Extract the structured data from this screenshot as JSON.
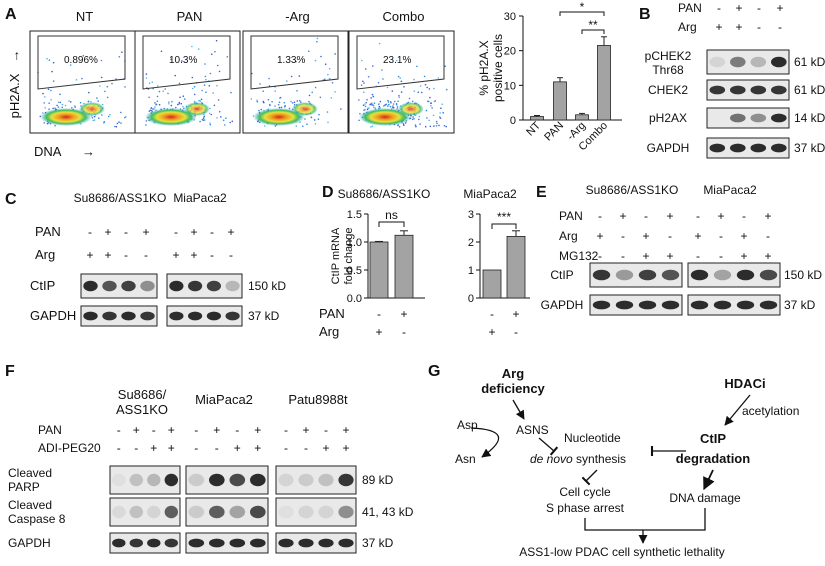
{
  "panels": {
    "A": {
      "letter": "A",
      "flow": {
        "titles": [
          "NT",
          "PAN",
          "-Arg",
          "Combo"
        ],
        "percents": [
          "0.896%",
          "10.3%",
          "1.33%",
          "23.1%"
        ],
        "y_label": "pH2A.X",
        "x_label": "DNA",
        "y_arrow": "→",
        "x_arrow": "→"
      },
      "bar": {
        "type": "bar",
        "ylabel_line1": "% pH2A.X",
        "ylabel_line2": "positive cells",
        "categories": [
          "NT",
          "PAN",
          "-Arg",
          "Combo"
        ],
        "values": [
          1,
          11,
          1.5,
          21.5
        ],
        "errors": [
          0.3,
          1.2,
          0.4,
          2.5
        ],
        "ylim": [
          0,
          30
        ],
        "yticks": [
          "0",
          "10",
          "20",
          "30"
        ],
        "significance": [
          "*",
          "**"
        ]
      }
    },
    "B": {
      "letter": "B",
      "rows": [
        {
          "name": "PAN",
          "signs": [
            "-",
            "+",
            "-",
            "+"
          ]
        },
        {
          "name": "Arg",
          "signs": [
            "+",
            "+",
            "-",
            "-"
          ]
        }
      ],
      "blots": [
        {
          "name_line1": "pCHEK2",
          "name_line2": "Thr68",
          "kd": "61 kD"
        },
        {
          "name_line1": "CHEK2",
          "name_line2": "",
          "kd": "61 kD"
        },
        {
          "name_line1": "pH2AX",
          "name_line2": "",
          "kd": "14 kD"
        },
        {
          "name_line1": "GAPDH",
          "name_line2": "",
          "kd": "37 kD"
        }
      ]
    },
    "C": {
      "letter": "C",
      "cells": [
        "Su8686/ASS1KO",
        "MiaPaca2"
      ],
      "rows": [
        {
          "name": "PAN",
          "signs": [
            "-",
            "+",
            "-",
            "+",
            "-",
            "+",
            "-",
            "+"
          ]
        },
        {
          "name": "Arg",
          "signs": [
            "+",
            "+",
            "-",
            "-",
            "+",
            "+",
            "-",
            "-"
          ]
        }
      ],
      "blots": [
        {
          "name": "CtIP",
          "kd": "150 kD"
        },
        {
          "name": "GAPDH",
          "kd": "37 kD"
        }
      ]
    },
    "D": {
      "letter": "D",
      "ylabel_line1": "CtIP mRNA",
      "ylabel_line2": "fold change",
      "rows": [
        {
          "name": "PAN",
          "signs": [
            "-",
            "+",
            "-",
            "+"
          ]
        },
        {
          "name": "Arg",
          "signs": [
            "+",
            "-",
            "+",
            "-"
          ]
        }
      ],
      "chart_data": [
        {
          "type": "bar",
          "title": "Su8686/ASS1KO",
          "values": [
            1.0,
            1.12
          ],
          "errors": [
            0.01,
            0.08
          ],
          "ylim": [
            0,
            1.5
          ],
          "yticks": [
            "0.0",
            "0.5",
            "1.0",
            "1.5"
          ],
          "significance": "ns"
        },
        {
          "type": "bar",
          "title": "MiaPaca2",
          "values": [
            1.0,
            2.2
          ],
          "errors": [
            0,
            0.2
          ],
          "ylim": [
            0,
            3
          ],
          "yticks": [
            "0",
            "1",
            "2",
            "3"
          ],
          "significance": "***"
        }
      ]
    },
    "E": {
      "letter": "E",
      "cells": [
        "Su8686/ASS1KO",
        "MiaPaca2"
      ],
      "rows": [
        {
          "name": "PAN",
          "signs": [
            "-",
            "+",
            "-",
            "+",
            "-",
            "+",
            "-",
            "+"
          ]
        },
        {
          "name": "Arg",
          "signs": [
            "+",
            "-",
            "+",
            "-",
            "+",
            "-",
            "+",
            "-"
          ]
        },
        {
          "name": "MG132",
          "signs": [
            "-",
            "-",
            "+",
            "+",
            "-",
            "-",
            "+",
            "+"
          ]
        }
      ],
      "blots": [
        {
          "name": "CtIP",
          "kd": "150 kD"
        },
        {
          "name": "GAPDH",
          "kd": "37 kD"
        }
      ]
    },
    "F": {
      "letter": "F",
      "cells": [
        {
          "line1": "Su8686/",
          "line2": "ASS1KO"
        },
        {
          "line1": "MiaPaca2",
          "line2": ""
        },
        {
          "line1": "Patu8988t",
          "line2": ""
        }
      ],
      "rows": [
        {
          "name": "PAN",
          "signs": [
            "-",
            "+",
            "-",
            "+"
          ]
        },
        {
          "name": "ADI-PEG20",
          "signs": [
            "-",
            "-",
            "+",
            "+"
          ]
        }
      ],
      "blots": [
        {
          "name_line1": "Cleaved",
          "name_line2": "PARP",
          "kd": "89 kD"
        },
        {
          "name_line1": "Cleaved",
          "name_line2": "Caspase 8",
          "kd": "41, 43 kD"
        },
        {
          "name_line1": "GAPDH",
          "name_line2": "",
          "kd": "37 kD"
        }
      ]
    },
    "G": {
      "letter": "G",
      "arg_line1": "Arg",
      "arg_line2": "deficiency",
      "asp": "Asp",
      "asns": "ASNS",
      "asn": "Asn",
      "nucleotide_line1": "Nucleotide",
      "nucleotide_italic": "de novo",
      "nucleotide_rest": " synthesis",
      "cellcycle_line1": "Cell cycle",
      "cellcycle_line2": "S phase arrest",
      "hdaci": "HDACi",
      "acetylation": "acetylation",
      "ctip_line1": "CtIP",
      "ctip_line2": "degradation",
      "dna_damage": "DNA damage",
      "outcome": "ASS1-low PDAC cell synthetic lethality"
    }
  }
}
